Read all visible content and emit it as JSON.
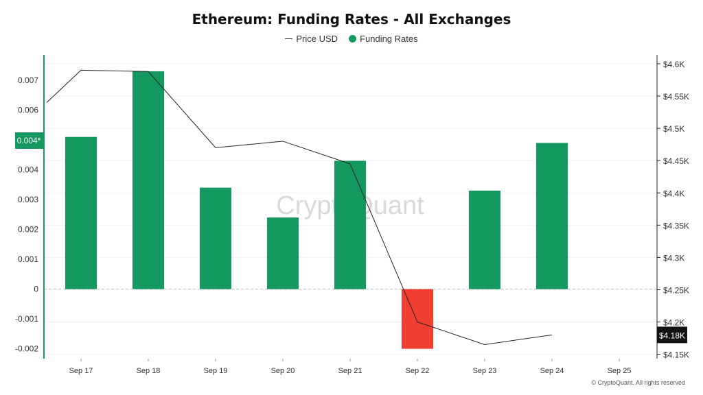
{
  "chart_data": {
    "type": "bar",
    "title": "Ethereum: Funding Rates - All Exchanges",
    "legend": [
      "Price USD",
      "Funding Rates"
    ],
    "categories": [
      "Sep 17",
      "Sep 18",
      "Sep 19",
      "Sep 20",
      "Sep 21",
      "Sep 22",
      "Sep 23",
      "Sep 24",
      "Sep 25"
    ],
    "series": [
      {
        "name": "Funding Rates",
        "axis": "left",
        "values": [
          0.0051,
          0.0073,
          0.0034,
          0.0024,
          0.0043,
          -0.002,
          0.0033,
          0.0049,
          null
        ]
      },
      {
        "name": "Price USD",
        "axis": "right",
        "type": "line",
        "values": [
          4.59,
          4.588,
          4.47,
          4.48,
          4.445,
          4.2,
          4.165,
          4.18,
          null
        ],
        "start_value": 4.54
      }
    ],
    "y_left": {
      "ticks": [
        "0.007",
        "0.006",
        "0.004*",
        "0.004",
        "0.003",
        "0.002",
        "0.001",
        "0",
        "-0.001",
        "-0.002"
      ],
      "tick_values": [
        0.007,
        0.006,
        0.004,
        0.003,
        0.002,
        0.001,
        0,
        -0.001,
        -0.002
      ],
      "range": [
        -0.00233,
        0.00785
      ],
      "current_value_label": "0.004*"
    },
    "y_right": {
      "ticks": [
        "$4.6K",
        "$4.55K",
        "$4.5K",
        "$4.45K",
        "$4.4K",
        "$4.35K",
        "$4.3K",
        "$4.25K",
        "$4.2K",
        "$4.18K",
        "$4.15K"
      ],
      "tick_values": [
        4.6,
        4.55,
        4.5,
        4.45,
        4.4,
        4.35,
        4.3,
        4.25,
        4.2,
        4.15
      ],
      "range": [
        4.1432,
        4.6138
      ],
      "current_value_label": "$4.18K"
    },
    "watermark": "CryptoQuant",
    "colors": {
      "positive": "#149961",
      "negative": "#f03e33",
      "price_line": "#222222",
      "axis": "#149961"
    }
  },
  "footer": {
    "copyright": "© CryptoQuant. All rights reserved"
  }
}
